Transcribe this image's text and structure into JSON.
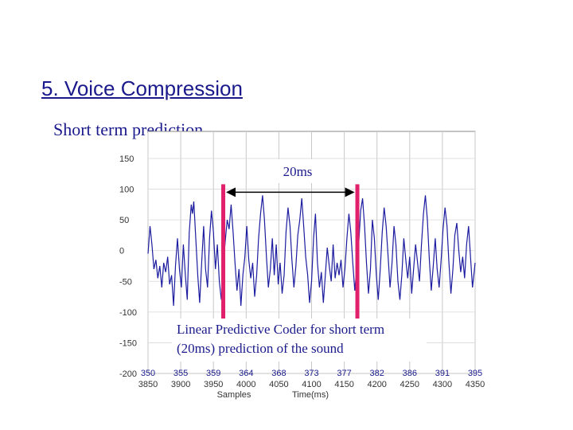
{
  "slide": {
    "title": "5. Voice Compression",
    "subtitle": "Short term prediction"
  },
  "chart_data": {
    "type": "line",
    "xlabel": "Samples",
    "xlabel2": "Time(ms)",
    "ylim": [
      -200,
      150
    ],
    "y_ticks": [
      150,
      100,
      50,
      0,
      -50,
      -100,
      -150,
      -200
    ],
    "x_samples": [
      350,
      355,
      359,
      364,
      368,
      373,
      377,
      382,
      386,
      391,
      395
    ],
    "x_time_ms": [
      3850,
      3900,
      3950,
      4000,
      4050,
      4100,
      4150,
      4200,
      4250,
      4300,
      4350
    ],
    "grid": true,
    "period_markers_ms": [
      3965,
      4170
    ],
    "series_color": "#1c1ca0",
    "marker_color": "#e0206a",
    "annotations": {
      "period_label": "20ms",
      "caption_line1": "Linear Predictive Coder for short term",
      "caption_line2": "(20ms) prediction of the sound"
    },
    "waveform": [
      [
        3850,
        -5
      ],
      [
        3853,
        40
      ],
      [
        3856,
        10
      ],
      [
        3859,
        -30
      ],
      [
        3862,
        -15
      ],
      [
        3865,
        -45
      ],
      [
        3868,
        -25
      ],
      [
        3871,
        -60
      ],
      [
        3874,
        -20
      ],
      [
        3877,
        -35
      ],
      [
        3880,
        -10
      ],
      [
        3883,
        -55
      ],
      [
        3886,
        -40
      ],
      [
        3889,
        -90
      ],
      [
        3892,
        -25
      ],
      [
        3895,
        20
      ],
      [
        3898,
        -30
      ],
      [
        3901,
        -60
      ],
      [
        3904,
        10
      ],
      [
        3907,
        -40
      ],
      [
        3910,
        -80
      ],
      [
        3913,
        30
      ],
      [
        3916,
        75
      ],
      [
        3918,
        60
      ],
      [
        3920,
        80
      ],
      [
        3923,
        20
      ],
      [
        3926,
        -40
      ],
      [
        3929,
        -85
      ],
      [
        3932,
        -20
      ],
      [
        3935,
        40
      ],
      [
        3938,
        -30
      ],
      [
        3941,
        -60
      ],
      [
        3944,
        20
      ],
      [
        3947,
        65
      ],
      [
        3950,
        30
      ],
      [
        3953,
        -30
      ],
      [
        3956,
        10
      ],
      [
        3959,
        -50
      ],
      [
        3962,
        -80
      ],
      [
        3965,
        -25
      ],
      [
        3968,
        15
      ],
      [
        3971,
        50
      ],
      [
        3974,
        35
      ],
      [
        3977,
        75
      ],
      [
        3980,
        30
      ],
      [
        3983,
        -20
      ],
      [
        3986,
        -65
      ],
      [
        3989,
        -30
      ],
      [
        3992,
        -90
      ],
      [
        3995,
        -40
      ],
      [
        3998,
        -10
      ],
      [
        4001,
        40
      ],
      [
        4004,
        -15
      ],
      [
        4007,
        -45
      ],
      [
        4010,
        -20
      ],
      [
        4013,
        -75
      ],
      [
        4016,
        -40
      ],
      [
        4019,
        20
      ],
      [
        4022,
        60
      ],
      [
        4025,
        90
      ],
      [
        4028,
        50
      ],
      [
        4031,
        -10
      ],
      [
        4034,
        -60
      ],
      [
        4037,
        -30
      ],
      [
        4040,
        20
      ],
      [
        4043,
        -40
      ],
      [
        4046,
        10
      ],
      [
        4049,
        -55
      ],
      [
        4052,
        -20
      ],
      [
        4055,
        -70
      ],
      [
        4058,
        -40
      ],
      [
        4061,
        30
      ],
      [
        4064,
        70
      ],
      [
        4067,
        40
      ],
      [
        4070,
        -15
      ],
      [
        4073,
        -60
      ],
      [
        4076,
        -25
      ],
      [
        4079,
        25
      ],
      [
        4082,
        50
      ],
      [
        4085,
        85
      ],
      [
        4088,
        40
      ],
      [
        4091,
        -10
      ],
      [
        4094,
        -40
      ],
      [
        4097,
        -85
      ],
      [
        4100,
        -50
      ],
      [
        4103,
        20
      ],
      [
        4106,
        60
      ],
      [
        4109,
        -20
      ],
      [
        4112,
        -60
      ],
      [
        4115,
        -35
      ],
      [
        4118,
        -85
      ],
      [
        4121,
        -40
      ],
      [
        4124,
        5
      ],
      [
        4127,
        -25
      ],
      [
        4130,
        -50
      ],
      [
        4133,
        10
      ],
      [
        4136,
        -45
      ],
      [
        4139,
        -20
      ],
      [
        4142,
        -40
      ],
      [
        4145,
        -15
      ],
      [
        4148,
        -60
      ],
      [
        4151,
        -30
      ],
      [
        4154,
        20
      ],
      [
        4157,
        60
      ],
      [
        4160,
        30
      ],
      [
        4163,
        -20
      ],
      [
        4166,
        -65
      ],
      [
        4169,
        -30
      ],
      [
        4172,
        10
      ],
      [
        4175,
        65
      ],
      [
        4178,
        85
      ],
      [
        4181,
        40
      ],
      [
        4184,
        -20
      ],
      [
        4187,
        -70
      ],
      [
        4190,
        -30
      ],
      [
        4193,
        50
      ],
      [
        4196,
        20
      ],
      [
        4199,
        -40
      ],
      [
        4202,
        -80
      ],
      [
        4205,
        -30
      ],
      [
        4208,
        30
      ],
      [
        4211,
        70
      ],
      [
        4214,
        40
      ],
      [
        4217,
        -10
      ],
      [
        4220,
        -60
      ],
      [
        4223,
        -20
      ],
      [
        4226,
        40
      ],
      [
        4229,
        10
      ],
      [
        4232,
        -50
      ],
      [
        4235,
        -80
      ],
      [
        4238,
        -40
      ],
      [
        4241,
        20
      ],
      [
        4244,
        -15
      ],
      [
        4247,
        -45
      ],
      [
        4250,
        -10
      ],
      [
        4253,
        -70
      ],
      [
        4256,
        -30
      ],
      [
        4259,
        10
      ],
      [
        4262,
        -20
      ],
      [
        4265,
        -50
      ],
      [
        4268,
        10
      ],
      [
        4271,
        60
      ],
      [
        4274,
        90
      ],
      [
        4277,
        50
      ],
      [
        4280,
        -15
      ],
      [
        4283,
        -65
      ],
      [
        4286,
        -25
      ],
      [
        4289,
        20
      ],
      [
        4292,
        -30
      ],
      [
        4295,
        -60
      ],
      [
        4298,
        -15
      ],
      [
        4301,
        35
      ],
      [
        4304,
        70
      ],
      [
        4307,
        40
      ],
      [
        4310,
        -20
      ],
      [
        4313,
        -70
      ],
      [
        4316,
        -30
      ],
      [
        4319,
        25
      ],
      [
        4322,
        45
      ],
      [
        4325,
        0
      ],
      [
        4328,
        -35
      ],
      [
        4331,
        -10
      ],
      [
        4334,
        -45
      ],
      [
        4337,
        10
      ],
      [
        4340,
        40
      ],
      [
        4343,
        -10
      ],
      [
        4346,
        -60
      ],
      [
        4349,
        -30
      ],
      [
        4350,
        -20
      ]
    ]
  }
}
